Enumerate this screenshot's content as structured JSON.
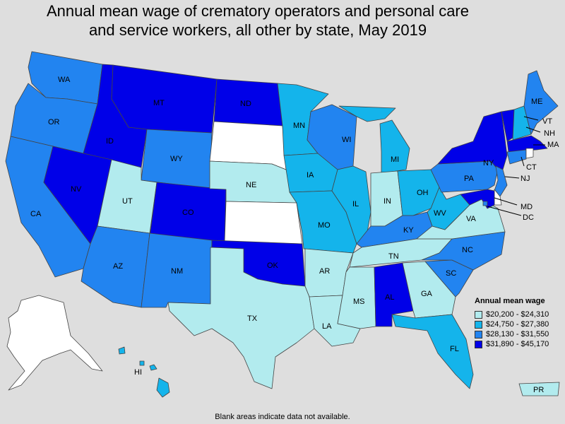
{
  "title": {
    "line1": "Annual mean wage of crematory operators and personal care",
    "line2": "and service workers, all other by state, May 2019"
  },
  "legend": {
    "title": "Annual mean wage",
    "items": [
      {
        "label": "$20,200 - $24,310",
        "color": "#b2ebee"
      },
      {
        "label": "$24,750 - $27,380",
        "color": "#14b4eb"
      },
      {
        "label": "$28,130 - $31,550",
        "color": "#2284f0"
      },
      {
        "label": "$31,890 - $45,170",
        "color": "#0000e8"
      }
    ]
  },
  "no_data_color": "#ffffff",
  "states": [
    {
      "abbr": "WA",
      "bin": 2
    },
    {
      "abbr": "OR",
      "bin": 2
    },
    {
      "abbr": "CA",
      "bin": 2
    },
    {
      "abbr": "ID",
      "bin": 3
    },
    {
      "abbr": "NV",
      "bin": 3
    },
    {
      "abbr": "MT",
      "bin": 3
    },
    {
      "abbr": "WY",
      "bin": 2
    },
    {
      "abbr": "UT",
      "bin": 0
    },
    {
      "abbr": "CO",
      "bin": 3
    },
    {
      "abbr": "AZ",
      "bin": 2
    },
    {
      "abbr": "NM",
      "bin": 2
    },
    {
      "abbr": "ND",
      "bin": 3
    },
    {
      "abbr": "SD",
      "bin": null
    },
    {
      "abbr": "NE",
      "bin": 0
    },
    {
      "abbr": "KS",
      "bin": null
    },
    {
      "abbr": "OK",
      "bin": 3
    },
    {
      "abbr": "TX",
      "bin": 0
    },
    {
      "abbr": "MN",
      "bin": 1
    },
    {
      "abbr": "IA",
      "bin": 1
    },
    {
      "abbr": "MO",
      "bin": 1
    },
    {
      "abbr": "AR",
      "bin": 0
    },
    {
      "abbr": "LA",
      "bin": 0
    },
    {
      "abbr": "WI",
      "bin": 2
    },
    {
      "abbr": "IL",
      "bin": 1
    },
    {
      "abbr": "MI",
      "bin": 1
    },
    {
      "abbr": "IN",
      "bin": 0
    },
    {
      "abbr": "OH",
      "bin": 1
    },
    {
      "abbr": "KY",
      "bin": 2
    },
    {
      "abbr": "TN",
      "bin": 0
    },
    {
      "abbr": "MS",
      "bin": 0
    },
    {
      "abbr": "AL",
      "bin": 3
    },
    {
      "abbr": "GA",
      "bin": 0
    },
    {
      "abbr": "FL",
      "bin": 1
    },
    {
      "abbr": "SC",
      "bin": 2
    },
    {
      "abbr": "NC",
      "bin": 2
    },
    {
      "abbr": "VA",
      "bin": 0
    },
    {
      "abbr": "WV",
      "bin": 1
    },
    {
      "abbr": "PA",
      "bin": 2
    },
    {
      "abbr": "NY",
      "bin": 3
    },
    {
      "abbr": "NJ",
      "bin": 2
    },
    {
      "abbr": "DE",
      "bin": null
    },
    {
      "abbr": "MD",
      "bin": 3
    },
    {
      "abbr": "DC",
      "bin": 2
    },
    {
      "abbr": "VT",
      "bin": 3
    },
    {
      "abbr": "NH",
      "bin": 1
    },
    {
      "abbr": "ME",
      "bin": 2
    },
    {
      "abbr": "MA",
      "bin": 3
    },
    {
      "abbr": "CT",
      "bin": 2
    },
    {
      "abbr": "RI",
      "bin": null
    },
    {
      "abbr": "AK",
      "bin": null
    },
    {
      "abbr": "HI",
      "bin": 1
    },
    {
      "abbr": "PR",
      "bin": 0
    }
  ],
  "footnote": "Blank areas indicate data not available."
}
